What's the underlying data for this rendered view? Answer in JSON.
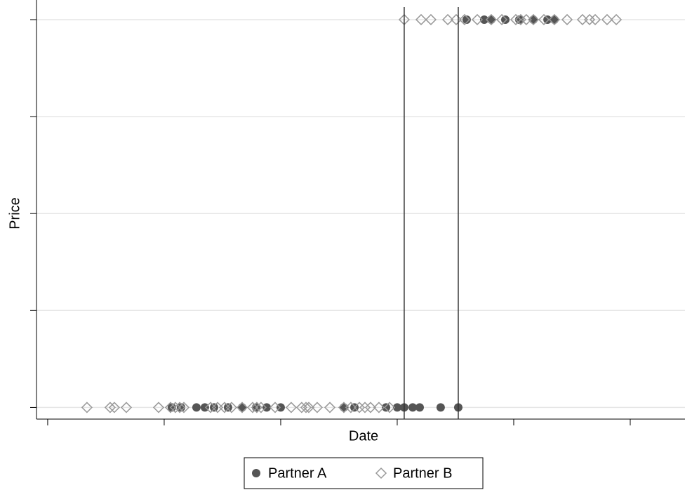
{
  "chart_data": {
    "type": "scatter",
    "x_label": "Date",
    "y_label": "Price",
    "xlim": [
      -9.6,
      547
    ],
    "xticks": [
      0,
      100,
      200,
      300,
      400,
      500
    ],
    "ylim": [
      -0.12,
      4.13
    ],
    "yticks": [
      0,
      1,
      2,
      3,
      4
    ],
    "grid": true,
    "vlines": [
      306,
      352.4
    ],
    "legend": "bottom",
    "series": [
      {
        "name": "Partner A",
        "color": "#555555",
        "marker": "circle",
        "x": [
          106.6,
          114.5,
          127.7,
          134.9,
          142.8,
          154.8,
          166.9,
          178.9,
          188,
          200,
          254.2,
          263.3,
          290.4,
          300,
          306,
          313.3,
          319.3,
          337.3,
          352.4,
          359.6,
          374.7,
          380.7,
          392.8,
          404.8,
          416.9,
          429,
          434.9
        ],
        "values": [
          0,
          0,
          0,
          0,
          0,
          0,
          0,
          0,
          0,
          0,
          0,
          0,
          0,
          0,
          0,
          0,
          0,
          0,
          0,
          4,
          4,
          4,
          4,
          4,
          4,
          4,
          4
        ]
      },
      {
        "name": "Partner B",
        "color": "#999999",
        "marker": "diamond",
        "x": [
          33.7,
          53.6,
          57.2,
          67.5,
          95.2,
          105.4,
          109.6,
          113.3,
          116.9,
          139.8,
          145.8,
          151.8,
          157.8,
          166.9,
          175.9,
          179.5,
          183.1,
          195.2,
          209,
          218,
          221.7,
          224.1,
          231.3,
          242.2,
          254.2,
          260.2,
          267.5,
          272.3,
          277.1,
          284.3,
          293.4,
          306,
          320.5,
          328.9,
          343.4,
          350.6,
          357.8,
          368.7,
          380.7,
          389.8,
          401.8,
          406,
          410.8,
          416.9,
          425.9,
          434.9,
          445.8,
          459,
          465.1,
          469.9,
          480.1,
          488
        ],
        "values": [
          0,
          0,
          0,
          0,
          0,
          0,
          0,
          0,
          0,
          0,
          0,
          0,
          0,
          0,
          0,
          0,
          0,
          0,
          0,
          0,
          0,
          0,
          0,
          0,
          0,
          0,
          0,
          0,
          0,
          0,
          0,
          4,
          4,
          4,
          4,
          4,
          4,
          4,
          4,
          4,
          4,
          4,
          4,
          4,
          4,
          4,
          4,
          4,
          4,
          4,
          4,
          4
        ]
      }
    ]
  }
}
